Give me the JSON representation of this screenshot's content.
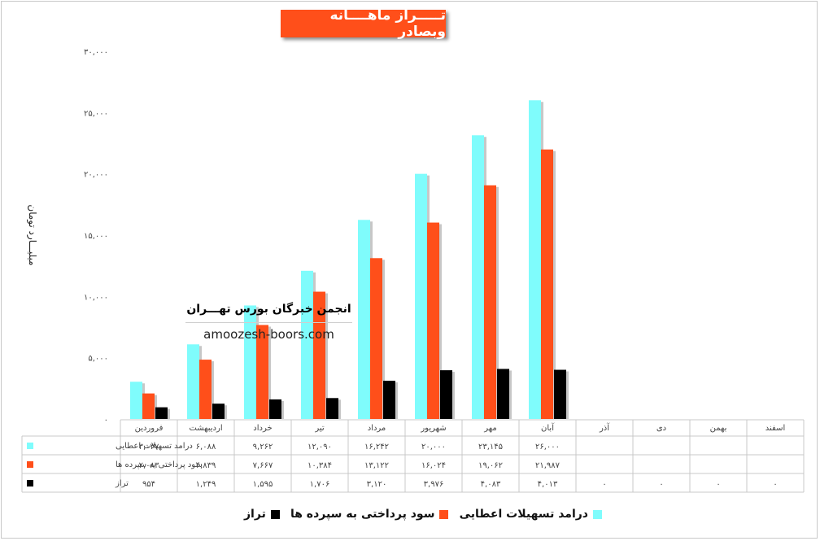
{
  "title": "تـــــراز ماهــــانه وبصادر",
  "watermark": {
    "title": "انجمن خبرگان بورس تهـــران",
    "url": "amoozesh-boors.com"
  },
  "chart_data": {
    "type": "bar",
    "title": "تـــــراز ماهــــانه وبصادر",
    "ylabel": "میلیـــارد تومان",
    "ylim": [
      0,
      30000
    ],
    "yticks": [
      "۰",
      "۵,۰۰۰",
      "۱۰,۰۰۰",
      "۱۵,۰۰۰",
      "۲۰,۰۰۰",
      "۲۵,۰۰۰",
      "۳۰,۰۰۰"
    ],
    "grid": false,
    "legend_position": "bottom",
    "categories": [
      "فروردین",
      "اردیبهشت",
      "خرداد",
      "تیر",
      "مرداد",
      "شهریور",
      "مهر",
      "آبان",
      "آذر",
      "دی",
      "بهمن",
      "اسفند"
    ],
    "series": [
      {
        "name": "درامد تسهیلات اعطایی",
        "color": "#7ffcfc",
        "values": [
          3037,
          6088,
          9262,
          12090,
          16242,
          20000,
          23145,
          26000,
          null,
          null,
          null,
          null
        ],
        "labels": [
          "۳,۰۳۷",
          "۶,۰۸۸",
          "۹,۲۶۲",
          "۱۲,۰۹۰",
          "۱۶,۲۴۲",
          "۲۰,۰۰۰",
          "۲۳,۱۴۵",
          "۲۶,۰۰۰",
          "",
          "",
          "",
          ""
        ]
      },
      {
        "name": "سود پرداختی به سپرده ها",
        "color": "#ff4f1a",
        "values": [
          2083,
          4839,
          7667,
          10384,
          13122,
          16024,
          19062,
          21987,
          null,
          null,
          null,
          null
        ],
        "labels": [
          "۲,۰۸۳",
          "۴,۸۳۹",
          "۷,۶۶۷",
          "۱۰,۳۸۴",
          "۱۳,۱۲۲",
          "۱۶,۰۲۴",
          "۱۹,۰۶۲",
          "۲۱,۹۸۷",
          "",
          "",
          "",
          ""
        ]
      },
      {
        "name": "تراز",
        "color": "#000000",
        "values": [
          954,
          1249,
          1595,
          1706,
          3120,
          3976,
          4083,
          4013,
          0,
          0,
          0,
          0
        ],
        "labels": [
          "۹۵۴",
          "۱,۲۴۹",
          "۱,۵۹۵",
          "۱,۷۰۶",
          "۳,۱۲۰",
          "۳,۹۷۶",
          "۴,۰۸۳",
          "۴,۰۱۳",
          "۰",
          "۰",
          "۰",
          "۰"
        ]
      }
    ]
  }
}
